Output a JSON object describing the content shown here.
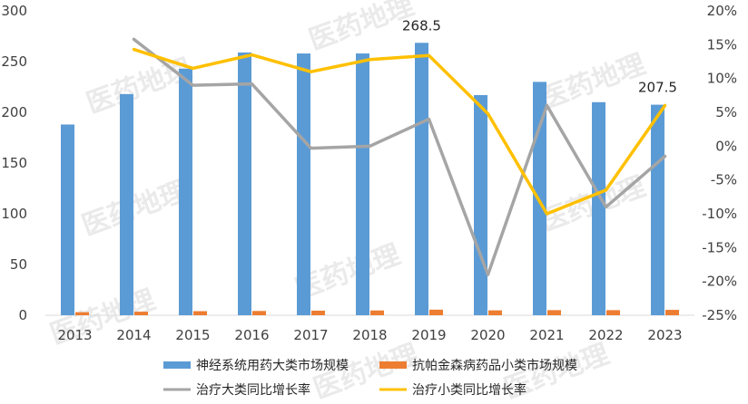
{
  "chart_data": {
    "type": "bar",
    "categories": [
      "2013",
      "2014",
      "2015",
      "2016",
      "2017",
      "2018",
      "2019",
      "2020",
      "2021",
      "2022",
      "2023"
    ],
    "series": [
      {
        "name": "神经系统用药大类市场规模",
        "kind": "bar",
        "axis": "left",
        "color": "#5B9BD5",
        "values": [
          188,
          218,
          243,
          259,
          258,
          258,
          268.5,
          217,
          230,
          210,
          207.5
        ]
      },
      {
        "name": "抗帕金森病药品小类市场规模",
        "kind": "bar",
        "axis": "left",
        "color": "#ED7D31",
        "values": [
          3,
          3.5,
          4,
          4.2,
          4.5,
          4.7,
          5.5,
          4.8,
          5,
          5,
          5.3
        ]
      },
      {
        "name": "治疗大类同比增长率",
        "kind": "line",
        "axis": "right",
        "color": "#A5A5A5",
        "values": [
          null,
          15.8,
          9,
          9.2,
          -0.3,
          0,
          4,
          -19,
          6,
          -9,
          -1.5
        ]
      },
      {
        "name": "治疗小类同比增长率",
        "kind": "line",
        "axis": "right",
        "color": "#FFC000",
        "values": [
          null,
          14.3,
          11.5,
          13.5,
          11,
          12.8,
          13.4,
          4.8,
          -10,
          -6.5,
          6
        ]
      }
    ],
    "left_axis": {
      "min": 0,
      "max": 300,
      "step": 50,
      "ticks": [
        "0",
        "50",
        "100",
        "150",
        "200",
        "250",
        "300"
      ]
    },
    "right_axis": {
      "min": -25,
      "max": 20,
      "step": 5,
      "ticks": [
        "-25%",
        "-20%",
        "-15%",
        "-10%",
        "-5%",
        "0%",
        "5%",
        "10%",
        "15%",
        "20%"
      ]
    },
    "data_labels": [
      {
        "category": "2019",
        "text": "268.5"
      },
      {
        "category": "2023",
        "text": "207.5"
      }
    ],
    "watermark": "医药地理",
    "legend_position": "bottom",
    "grid": false
  }
}
